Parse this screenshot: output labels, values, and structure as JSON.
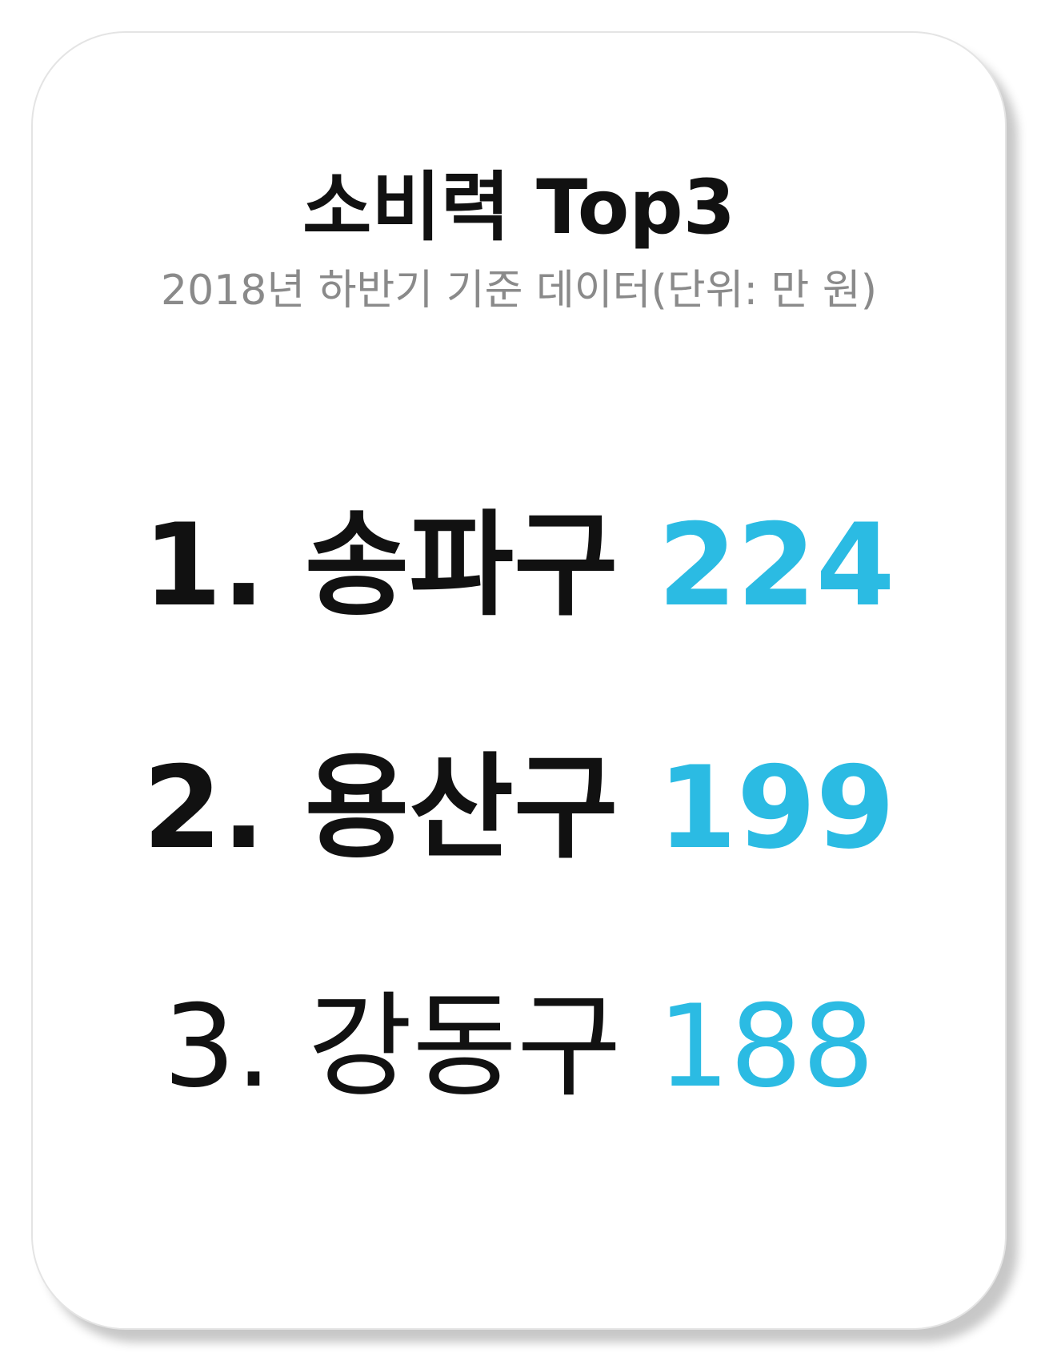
{
  "title": "소비력 Top3",
  "subtitle": "2018년 하반기 기준 데이터(단위: 만 원)",
  "accent_color": "#2bbbe3",
  "rankings": [
    {
      "label": "1. 송파구",
      "value": "224"
    },
    {
      "label": "2. 용산구",
      "value": "199"
    },
    {
      "label": "3. 강동구",
      "value": "188"
    }
  ]
}
